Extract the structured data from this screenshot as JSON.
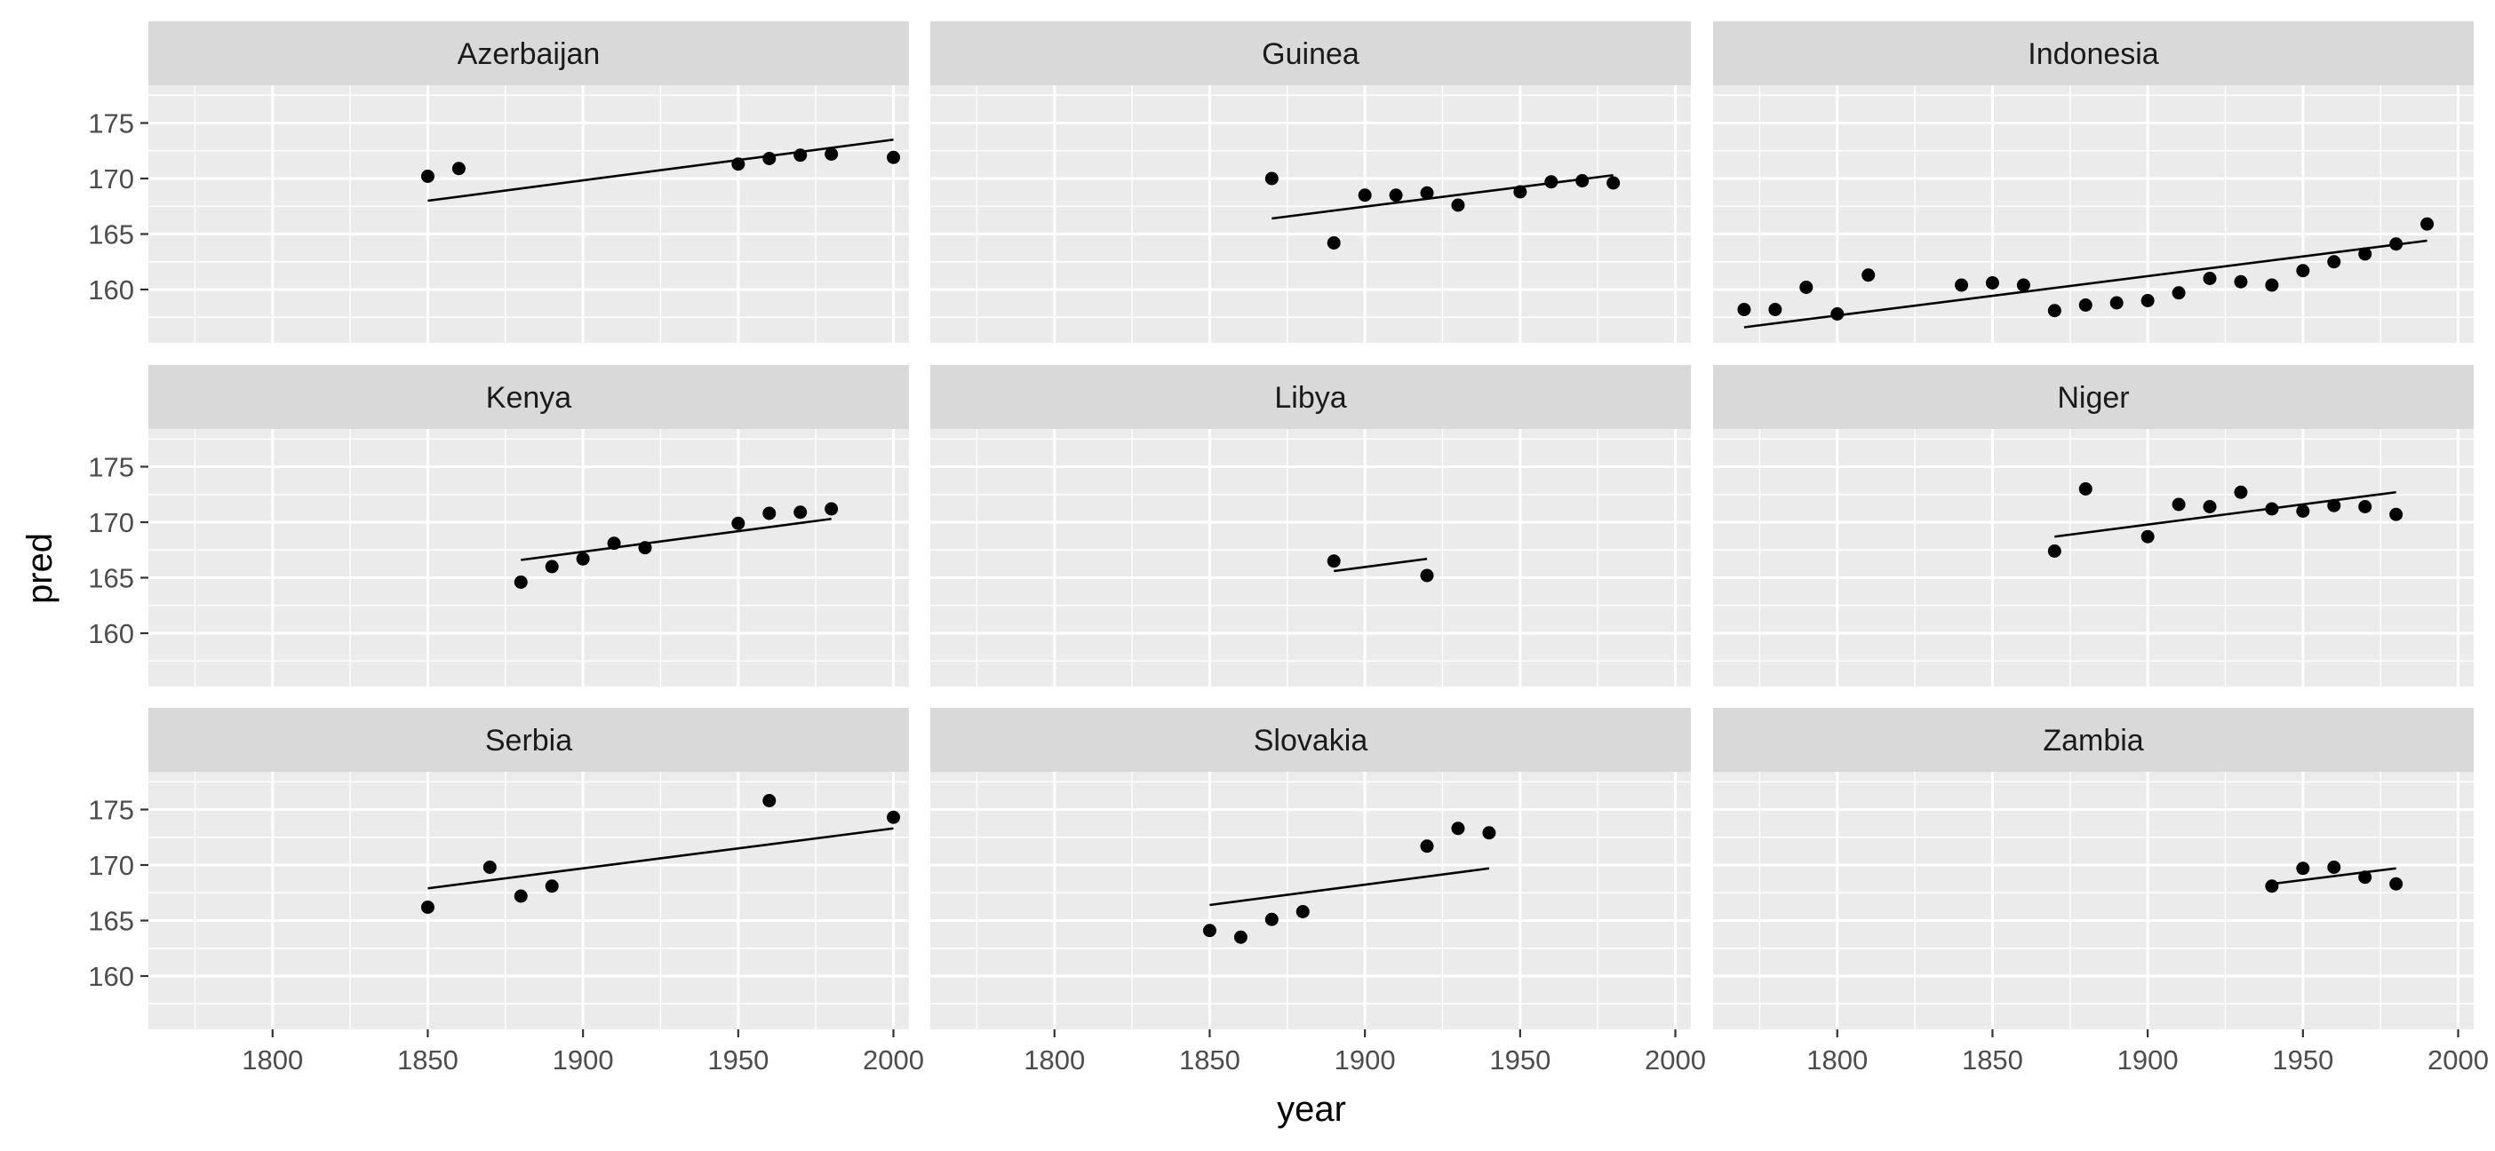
{
  "chart_data": {
    "type": "scatter",
    "facet_layout": "3x3 grid, shared axes",
    "xlabel": "year",
    "ylabel": "pred",
    "xlim": [
      1760,
      2005
    ],
    "ylim": [
      155.2,
      178.4
    ],
    "x_ticks": [
      1800,
      1850,
      1900,
      1950,
      2000
    ],
    "x_tick_labels": [
      "1800",
      "1850",
      "1900",
      "1950",
      "2000"
    ],
    "y_ticks": [
      160,
      165,
      170,
      175
    ],
    "y_tick_labels": [
      "160",
      "165",
      "170",
      "175"
    ],
    "grid": true,
    "colors": {
      "panel_background": "#ebebeb",
      "strip_background": "#d9d9d9",
      "gridline": "#ffffff",
      "points": "#000000",
      "fit_line": "#000000"
    },
    "facets": [
      {
        "name": "Azerbaijan",
        "points": [
          [
            1850,
            170.2
          ],
          [
            1860,
            170.9
          ],
          [
            1950,
            171.3
          ],
          [
            1960,
            171.8
          ],
          [
            1970,
            172.1
          ],
          [
            1980,
            172.2
          ],
          [
            2000,
            171.9
          ]
        ],
        "fit": [
          [
            1850,
            168.0
          ],
          [
            2000,
            173.5
          ]
        ]
      },
      {
        "name": "Guinea",
        "points": [
          [
            1870,
            170.0
          ],
          [
            1890,
            164.2
          ],
          [
            1900,
            168.5
          ],
          [
            1910,
            168.5
          ],
          [
            1920,
            168.7
          ],
          [
            1930,
            167.6
          ],
          [
            1950,
            168.8
          ],
          [
            1960,
            169.7
          ],
          [
            1970,
            169.8
          ],
          [
            1980,
            169.6
          ]
        ],
        "fit": [
          [
            1870,
            166.4
          ],
          [
            1980,
            170.3
          ]
        ]
      },
      {
        "name": "Indonesia",
        "points": [
          [
            1770,
            158.2
          ],
          [
            1780,
            158.2
          ],
          [
            1790,
            160.2
          ],
          [
            1800,
            157.8
          ],
          [
            1810,
            161.3
          ],
          [
            1840,
            160.4
          ],
          [
            1850,
            160.6
          ],
          [
            1860,
            160.4
          ],
          [
            1870,
            158.1
          ],
          [
            1880,
            158.6
          ],
          [
            1890,
            158.8
          ],
          [
            1900,
            159.0
          ],
          [
            1910,
            159.7
          ],
          [
            1920,
            161.0
          ],
          [
            1930,
            160.7
          ],
          [
            1940,
            160.4
          ],
          [
            1950,
            161.7
          ],
          [
            1960,
            162.5
          ],
          [
            1970,
            163.2
          ],
          [
            1980,
            164.1
          ],
          [
            1990,
            165.9
          ]
        ],
        "fit": [
          [
            1770,
            156.6
          ],
          [
            1990,
            164.4
          ]
        ]
      },
      {
        "name": "Kenya",
        "points": [
          [
            1880,
            164.6
          ],
          [
            1890,
            166.0
          ],
          [
            1900,
            166.7
          ],
          [
            1910,
            168.1
          ],
          [
            1920,
            167.7
          ],
          [
            1950,
            169.9
          ],
          [
            1960,
            170.8
          ],
          [
            1970,
            170.9
          ],
          [
            1980,
            171.2
          ]
        ],
        "fit": [
          [
            1880,
            166.6
          ],
          [
            1980,
            170.3
          ]
        ]
      },
      {
        "name": "Libya",
        "points": [
          [
            1890,
            166.5
          ],
          [
            1920,
            165.2
          ]
        ],
        "fit": [
          [
            1890,
            165.6
          ],
          [
            1920,
            166.7
          ]
        ]
      },
      {
        "name": "Niger",
        "points": [
          [
            1870,
            167.4
          ],
          [
            1880,
            173.0
          ],
          [
            1900,
            168.7
          ],
          [
            1910,
            171.6
          ],
          [
            1920,
            171.4
          ],
          [
            1930,
            172.7
          ],
          [
            1940,
            171.2
          ],
          [
            1950,
            171.0
          ],
          [
            1960,
            171.5
          ],
          [
            1970,
            171.4
          ],
          [
            1980,
            170.7
          ]
        ],
        "fit": [
          [
            1870,
            168.7
          ],
          [
            1980,
            172.7
          ]
        ]
      },
      {
        "name": "Serbia",
        "points": [
          [
            1850,
            166.2
          ],
          [
            1870,
            169.8
          ],
          [
            1880,
            167.2
          ],
          [
            1890,
            168.1
          ],
          [
            1960,
            175.8
          ],
          [
            2000,
            174.3
          ]
        ],
        "fit": [
          [
            1850,
            167.9
          ],
          [
            2000,
            173.3
          ]
        ]
      },
      {
        "name": "Slovakia",
        "points": [
          [
            1850,
            164.1
          ],
          [
            1860,
            163.5
          ],
          [
            1870,
            165.1
          ],
          [
            1880,
            165.8
          ],
          [
            1920,
            171.7
          ],
          [
            1930,
            173.3
          ],
          [
            1940,
            172.9
          ]
        ],
        "fit": [
          [
            1850,
            166.4
          ],
          [
            1940,
            169.7
          ]
        ]
      },
      {
        "name": "Zambia",
        "points": [
          [
            1940,
            168.1
          ],
          [
            1950,
            169.7
          ],
          [
            1960,
            169.8
          ],
          [
            1970,
            168.9
          ],
          [
            1980,
            168.3
          ]
        ],
        "fit": [
          [
            1940,
            168.3
          ],
          [
            1980,
            169.7
          ]
        ]
      }
    ]
  }
}
